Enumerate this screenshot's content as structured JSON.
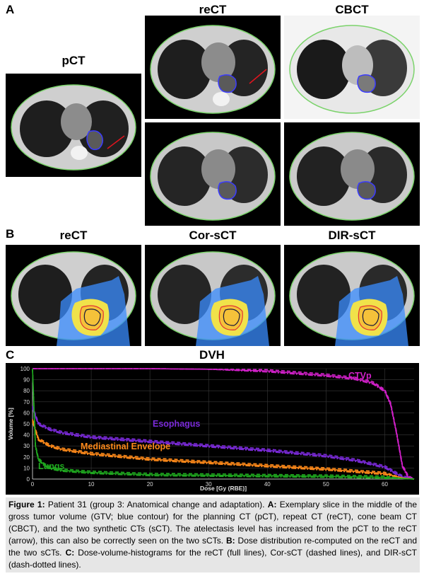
{
  "panels": {
    "A": {
      "letter": "A",
      "titles": {
        "pct": "pCT",
        "rect": "reCT",
        "cbct": "CBCT"
      }
    },
    "B": {
      "letter": "B",
      "titles": {
        "rect": "reCT",
        "cor": "Cor-sCT",
        "dir": "DIR-sCT"
      }
    },
    "C": {
      "letter": "C",
      "title": "DVH"
    }
  },
  "colors": {
    "ctv": "#d020c8",
    "esophagus": "#7a2ad8",
    "mediastinal": "#ff8a1a",
    "lungs": "#1fa81f",
    "gtv_contour": "#3b3bff",
    "body_contour": "#7bd36b",
    "arrow": "#e0141e"
  },
  "chart_data": {
    "type": "line",
    "title": "",
    "xlabel": "Dose [Gy (RBE)]",
    "ylabel": "Volume [%]",
    "xlim": [
      0,
      65
    ],
    "ylim": [
      0,
      100
    ],
    "xticks": [
      0,
      10,
      20,
      30,
      40,
      50,
      60
    ],
    "yticks": [
      0,
      10,
      20,
      30,
      40,
      50,
      60,
      70,
      80,
      90,
      100
    ],
    "grid": true,
    "series": [
      {
        "name": "CTVp",
        "color_key": "ctv",
        "x": [
          0,
          10,
          20,
          30,
          40,
          45,
          50,
          55,
          58,
          60,
          61,
          62,
          63,
          64,
          65
        ],
        "y": [
          100,
          100,
          100,
          99.5,
          98,
          96,
          94,
          91,
          87,
          80,
          68,
          42,
          12,
          2,
          0
        ]
      },
      {
        "name": "Esophagus",
        "color_key": "esophagus",
        "x": [
          0,
          1,
          3,
          5,
          10,
          20,
          30,
          40,
          50,
          55,
          60,
          63,
          65
        ],
        "y": [
          65,
          50,
          45,
          42,
          38,
          34,
          30,
          26,
          21,
          17,
          11,
          2,
          0
        ]
      },
      {
        "name": "Mediastinal Envelope",
        "color_key": "mediastinal",
        "x": [
          0,
          1,
          3,
          5,
          10,
          20,
          30,
          40,
          50,
          60,
          63,
          65
        ],
        "y": [
          53,
          36,
          30,
          27,
          23,
          18,
          15,
          12,
          9,
          5,
          1,
          0
        ]
      },
      {
        "name": "Lungs",
        "color_key": "lungs",
        "x": [
          0,
          0.5,
          1,
          2,
          3,
          5,
          10,
          20,
          30,
          40,
          50,
          60,
          63,
          65
        ],
        "y": [
          100,
          30,
          18,
          13,
          10,
          8,
          6,
          4,
          3.5,
          3,
          2.5,
          1.5,
          0.5,
          0
        ]
      }
    ]
  },
  "caption": {
    "fig_label": "Figure 1:",
    "t1": " Patient 31 (group 3: Anatomical change and adaptation). ",
    "a_label": "A:",
    "t2": " Exemplary slice in the middle of the gross tumor volume (GTV; blue contour) for the planning CT (pCT), repeat CT (reCT), cone beam CT (CBCT), and the two synthetic CTs (sCT). The atelectasis level has increased from the pCT to the reCT (arrow), this can also be correctly seen on the two sCTs. ",
    "b_label": "B:",
    "t3": " Dose distribution re-computed on the reCT and the two sCTs. ",
    "c_label": "C:",
    "t4": " Dose-volume-histograms for the reCT (full lines), Cor-sCT (dashed lines), and DIR-sCT (dash-dotted lines)."
  }
}
